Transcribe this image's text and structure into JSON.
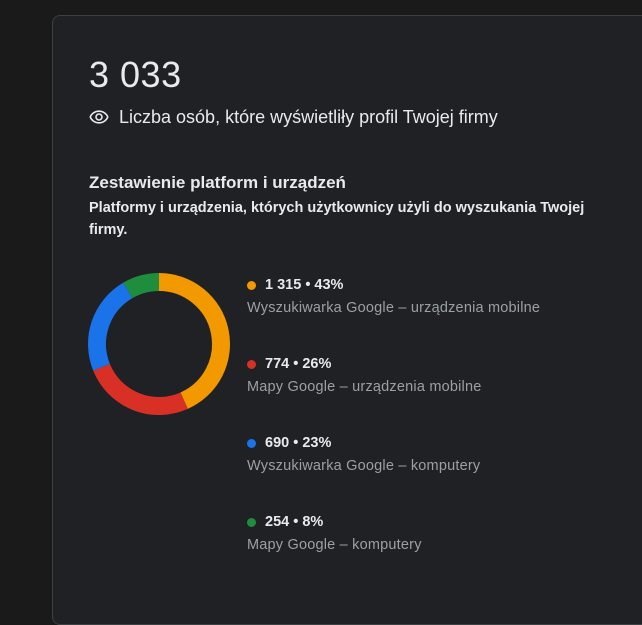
{
  "summary": {
    "total": "3 033",
    "total_label": "Liczba osób, które wyświetliły profil Twojej firmy",
    "icon": "eye-icon"
  },
  "section": {
    "title": "Zestawienie platform i urządzeń",
    "description": "Platformy i urządzenia, których użytkownicy użyli do wyszukania Twojej firmy."
  },
  "legend": [
    {
      "value_text": "1 315 • 43%",
      "label": "Wyszukiwarka Google – urządzenia mobilne",
      "color": "#f29900"
    },
    {
      "value_text": "774 • 26%",
      "label": "Mapy Google – urządzenia mobilne",
      "color": "#d93025"
    },
    {
      "value_text": "690 • 23%",
      "label": "Wyszukiwarka Google – komputery",
      "color": "#1a73e8"
    },
    {
      "value_text": "254 • 8%",
      "label": "Mapy Google – komputery",
      "color": "#1e8e3e"
    }
  ],
  "chart_data": {
    "type": "pie",
    "title": "Zestawienie platform i urządzeń",
    "donut": true,
    "categories": [
      "Wyszukiwarka Google – urządzenia mobilne",
      "Mapy Google – urządzenia mobilne",
      "Wyszukiwarka Google – komputery",
      "Mapy Google – komputery"
    ],
    "values": [
      1315,
      774,
      690,
      254
    ],
    "percentages": [
      43,
      26,
      23,
      8
    ],
    "colors": [
      "#f29900",
      "#d93025",
      "#1a73e8",
      "#1e8e3e"
    ],
    "total": 3033,
    "legend_position": "right"
  }
}
